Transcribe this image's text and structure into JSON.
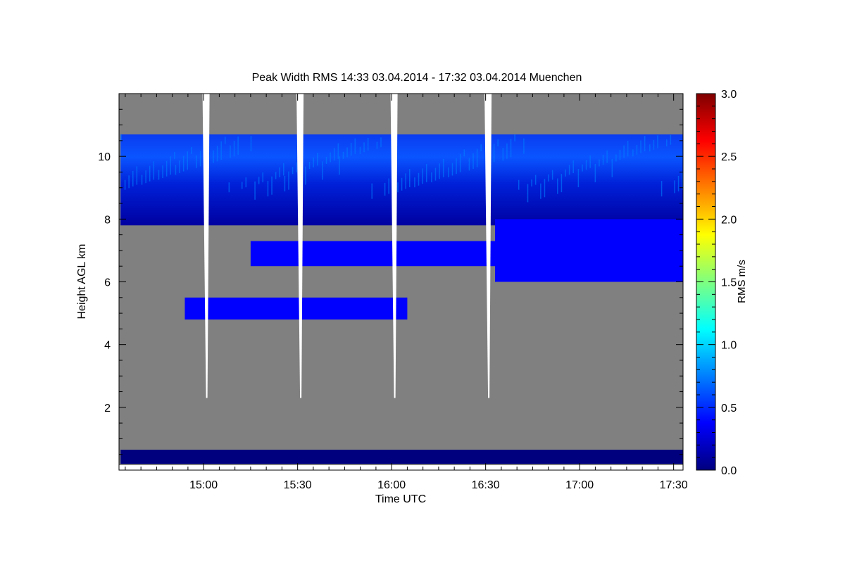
{
  "chart_data": {
    "type": "heatmap",
    "title": "Peak Width RMS   14:33 03.04.2014 - 17:32 03.04.2014 Muenchen",
    "xlabel": "Time UTC",
    "ylabel": "Height AGL km",
    "colorbar_label": "RMS m/s",
    "x_range_minutes_utc": [
      873,
      1053
    ],
    "y_range_km": [
      0,
      12
    ],
    "x_ticks": [
      {
        "minute": 900,
        "label": "15:00"
      },
      {
        "minute": 930,
        "label": "15:30"
      },
      {
        "minute": 960,
        "label": "16:00"
      },
      {
        "minute": 990,
        "label": "16:30"
      },
      {
        "minute": 1020,
        "label": "17:00"
      },
      {
        "minute": 1050,
        "label": "17:30"
      }
    ],
    "y_ticks": [
      {
        "value": 2,
        "label": "2"
      },
      {
        "value": 4,
        "label": "4"
      },
      {
        "value": 6,
        "label": "6"
      },
      {
        "value": 8,
        "label": "8"
      },
      {
        "value": 10,
        "label": "10"
      }
    ],
    "colorbar_range": [
      0,
      3
    ],
    "colorbar_ticks": [
      {
        "value": 0,
        "label": "0.0"
      },
      {
        "value": 0.5,
        "label": "0.5"
      },
      {
        "value": 1.0,
        "label": "1.0"
      },
      {
        "value": 1.5,
        "label": "1.5"
      },
      {
        "value": 2.0,
        "label": "2.0"
      },
      {
        "value": 2.5,
        "label": "2.5"
      },
      {
        "value": 3.0,
        "label": "3.0"
      }
    ],
    "colormap": [
      "#00007f",
      "#0000ff",
      "#007fff",
      "#00ffff",
      "#7fff7f",
      "#ffff00",
      "#ff7f00",
      "#ff0000",
      "#7f0000"
    ],
    "background_color": "#808080",
    "grid": false,
    "cloud_layers": [
      {
        "t_start": 873.5,
        "t_end": 1053,
        "h_bottom": 7.8,
        "h_top": 10.7,
        "rms_typical": 0.4,
        "rms_max": 0.9
      },
      {
        "t_start": 915,
        "t_end": 993,
        "h_bottom": 6.5,
        "h_top": 7.3,
        "rms_typical": 0.25
      },
      {
        "t_start": 993,
        "t_end": 1053,
        "h_bottom": 6.0,
        "h_top": 8.0,
        "rms_typical": 0.3
      },
      {
        "t_start": 894,
        "t_end": 965,
        "h_bottom": 4.8,
        "h_top": 5.5,
        "rms_typical": 0.2
      },
      {
        "t_start": 873.5,
        "t_end": 1053,
        "h_bottom": 0.2,
        "h_top": 0.65,
        "rms_typical": 0.15
      }
    ],
    "data_gaps_minutes": [
      901,
      931,
      961,
      991
    ]
  }
}
